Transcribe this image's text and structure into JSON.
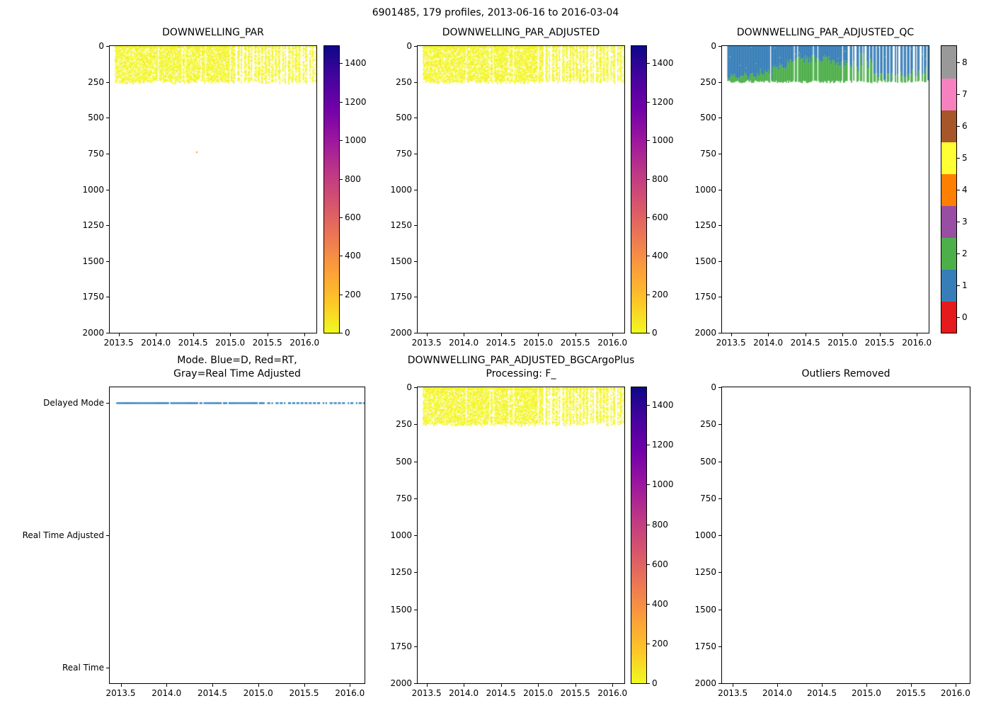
{
  "suptitle": "6901485, 179 profiles, 2013-06-16 to 2016-03-04",
  "figure": {
    "float_id": "6901485",
    "n_profiles": 179,
    "date_start": "2013-06-16",
    "date_end": "2016-03-04"
  },
  "chart_data": {
    "type": "heatmap",
    "layout": "2x3 subplot grid, depth vs time profile plots",
    "x_axis": {
      "lim": [
        2013.38,
        2016.16
      ],
      "ticks": [
        2013.5,
        2014.0,
        2014.5,
        2015.0,
        2015.5,
        2016.0
      ],
      "tick_labels": [
        "2013.5",
        "2014.0",
        "2014.5",
        "2015.0",
        "2015.5",
        "2016.0"
      ]
    },
    "depth_axis": {
      "lim": [
        0,
        2000
      ],
      "inverted": true,
      "ticks": [
        0,
        250,
        500,
        750,
        1000,
        1250,
        1500,
        1750,
        2000
      ],
      "tick_labels": [
        "0",
        "250",
        "500",
        "750",
        "1000",
        "1250",
        "1500",
        "1750",
        "2000"
      ]
    },
    "profiles": {
      "count": 179,
      "time_start_decimal_year": 2013.46,
      "time_end_decimal_year": 2016.15,
      "sampled_depth_range_m": [
        0,
        260
      ]
    },
    "colormap": "plasma_r",
    "qc_palette": [
      "#e41a1c",
      "#377eb8",
      "#4daf4a",
      "#984ea3",
      "#ff7f00",
      "#ffff33",
      "#a65628",
      "#f781bf",
      "#999999"
    ],
    "panels": [
      {
        "id": "downwelling-par",
        "title": "DOWNWELLING_PAR",
        "kind": "profile-scatter",
        "dot_color": "#f0f921",
        "values_near": 0,
        "outlier_point": {
          "time": 2014.55,
          "depth_m": 740
        },
        "colorbar": {
          "vmin": 0,
          "vmax": 1490,
          "ticks": [
            0,
            200,
            400,
            600,
            800,
            1000,
            1200,
            1400
          ],
          "tick_labels": [
            "0",
            "200",
            "400",
            "600",
            "800",
            "1000",
            "1200",
            "1400"
          ]
        }
      },
      {
        "id": "downwelling-par-adjusted",
        "title": "DOWNWELLING_PAR_ADJUSTED",
        "kind": "profile-scatter",
        "dot_color": "#f0f921",
        "values_near": 0,
        "colorbar": {
          "vmin": 0,
          "vmax": 1490,
          "ticks": [
            0,
            200,
            400,
            600,
            800,
            1000,
            1200,
            1400
          ],
          "tick_labels": [
            "0",
            "200",
            "400",
            "600",
            "800",
            "1000",
            "1200",
            "1400"
          ]
        }
      },
      {
        "id": "downwelling-par-adjusted-qc",
        "title": "DOWNWELLING_PAR_ADJUSTED_QC",
        "kind": "qc",
        "qc_values_shown": [
          1,
          2
        ],
        "qc_blue": "#377eb8",
        "qc_green": "#4daf4a",
        "colorbar": {
          "ticks": [
            0,
            1,
            2,
            3,
            4,
            5,
            6,
            7,
            8
          ],
          "tick_labels": [
            "0",
            "1",
            "2",
            "3",
            "4",
            "5",
            "6",
            "7",
            "8"
          ],
          "segments": [
            "#e41a1c",
            "#377eb8",
            "#4daf4a",
            "#984ea3",
            "#ff7f00",
            "#ffff33",
            "#a65628",
            "#f781bf",
            "#999999"
          ]
        }
      },
      {
        "id": "mode",
        "title": "Mode. Blue=D, Red=RT,\nGray=Real Time Adjusted",
        "kind": "mode",
        "categories": [
          "Delayed Mode",
          "Real Time Adjusted",
          "Real Time"
        ],
        "category_values": [
          2,
          1,
          0
        ],
        "active_category": "Delayed Mode",
        "line_color": "#1f77b4"
      },
      {
        "id": "downwelling-par-adjusted-bgcargoplus",
        "title": "DOWNWELLING_PAR_ADJUSTED_BGCArgoPlus\nProcessing: F_",
        "kind": "profile-scatter",
        "dot_color": "#f0f921",
        "values_near": 0,
        "colorbar": {
          "vmin": 0,
          "vmax": 1490,
          "ticks": [
            0,
            200,
            400,
            600,
            800,
            1000,
            1200,
            1400
          ],
          "tick_labels": [
            "0",
            "200",
            "400",
            "600",
            "800",
            "1000",
            "1200",
            "1400"
          ]
        }
      },
      {
        "id": "outliers-removed",
        "title": "Outliers Removed",
        "kind": "empty"
      }
    ]
  }
}
